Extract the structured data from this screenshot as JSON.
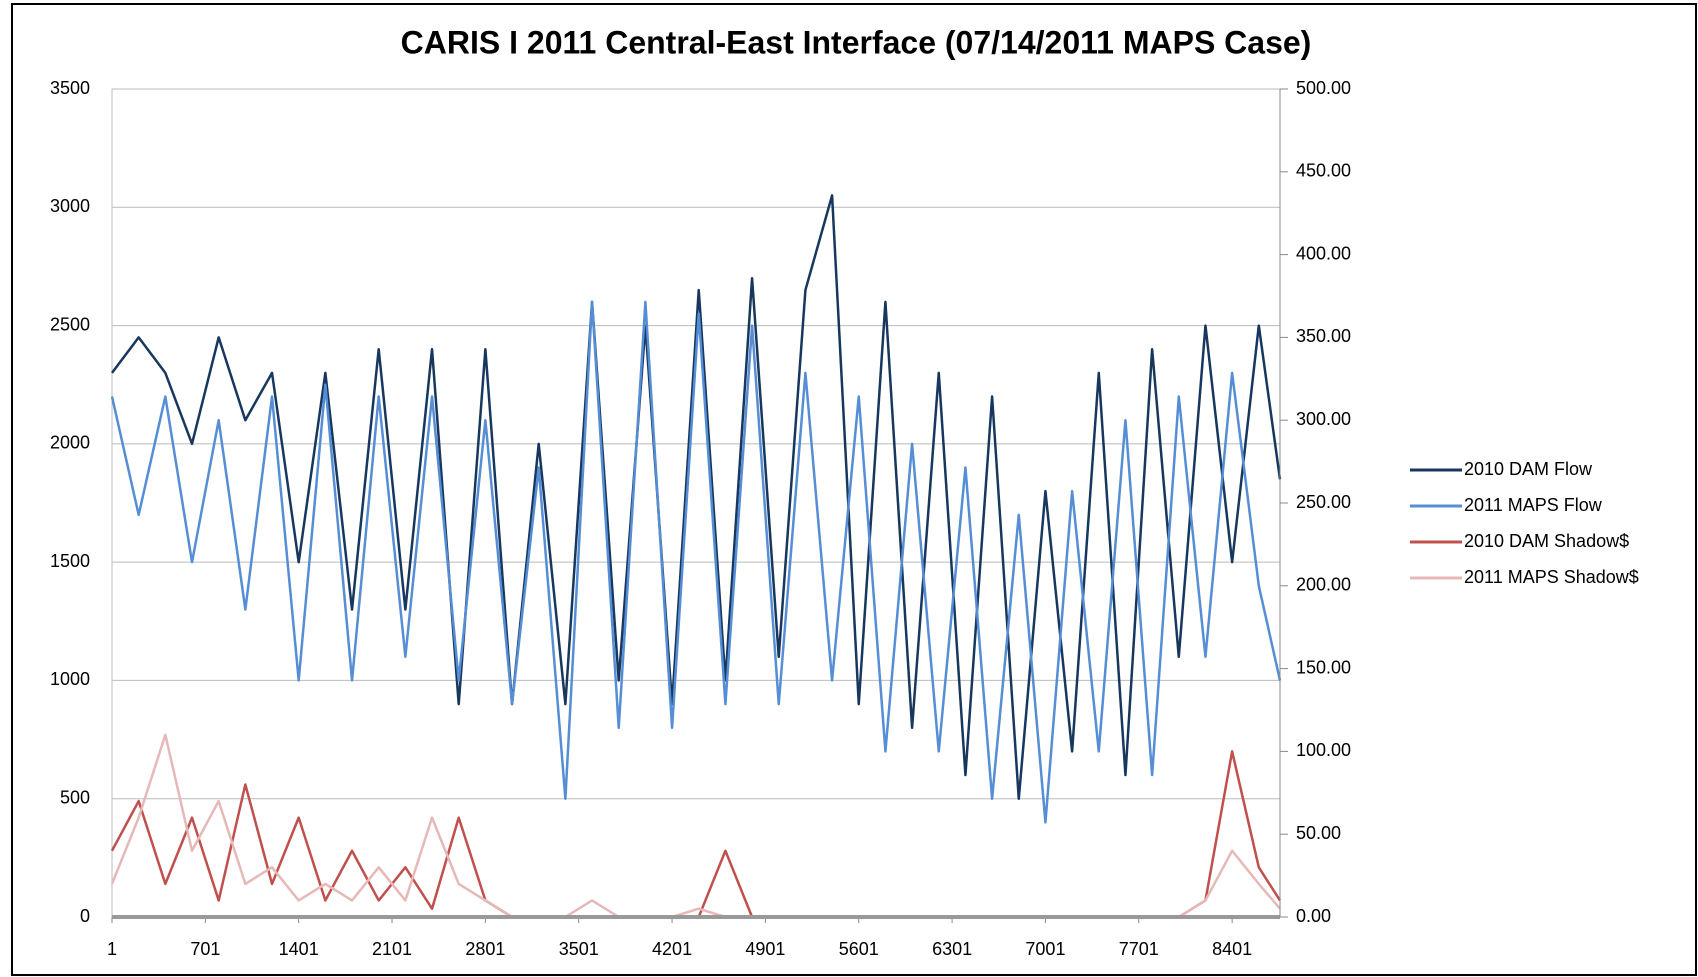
{
  "chart_data": {
    "type": "line",
    "title": "CARIS I 2011 Central-East Interface (07/14/2011 MAPS Case)",
    "x": [
      1,
      201,
      401,
      601,
      801,
      1001,
      1201,
      1401,
      1601,
      1801,
      2001,
      2201,
      2401,
      2601,
      2801,
      3001,
      3201,
      3401,
      3601,
      3801,
      4001,
      4201,
      4401,
      4601,
      4801,
      5001,
      5201,
      5401,
      5601,
      5801,
      6001,
      6201,
      6401,
      6601,
      6801,
      7001,
      7201,
      7401,
      7601,
      7801,
      8001,
      8201,
      8401,
      8601,
      8760
    ],
    "xlim": [
      1,
      8760
    ],
    "xticks": [
      1,
      701,
      1401,
      2101,
      2801,
      3501,
      4201,
      4901,
      5601,
      6301,
      7001,
      7701,
      8401
    ],
    "ylim": [
      0,
      3500
    ],
    "yticks": [
      0,
      500,
      1000,
      1500,
      2000,
      2500,
      3000,
      3500
    ],
    "y2lim": [
      0,
      500
    ],
    "y2ticks": [
      {
        "value": 0,
        "label": "0.00"
      },
      {
        "value": 50,
        "label": "50.00"
      },
      {
        "value": 100,
        "label": "100.00"
      },
      {
        "value": 150,
        "label": "150.00"
      },
      {
        "value": 200,
        "label": "200.00"
      },
      {
        "value": 250,
        "label": "250.00"
      },
      {
        "value": 300,
        "label": "300.00"
      },
      {
        "value": 350,
        "label": "350.00"
      },
      {
        "value": 400,
        "label": "400.00"
      },
      {
        "value": 450,
        "label": "450.00"
      },
      {
        "value": 500,
        "label": "500.00"
      }
    ],
    "grid": true,
    "legend": "right",
    "series": [
      {
        "name": "2010 DAM Flow",
        "color": "#17375e",
        "values": [
          2300,
          2450,
          2300,
          2000,
          2450,
          2100,
          2300,
          1500,
          2300,
          1300,
          2400,
          1300,
          2400,
          900,
          2400,
          900,
          2000,
          900,
          2600,
          1000,
          2500,
          900,
          2650,
          1000,
          2700,
          1100,
          2650,
          3050,
          900,
          2600,
          800,
          2300,
          600,
          2200,
          500,
          1800,
          700,
          2300,
          600,
          2400,
          1100,
          2500,
          1500,
          2500,
          1850
        ]
      },
      {
        "name": "2011 MAPS Flow",
        "color": "#558ed5",
        "values": [
          2200,
          1700,
          2200,
          1500,
          2100,
          1300,
          2200,
          1000,
          2250,
          1000,
          2200,
          1100,
          2200,
          1000,
          2100,
          900,
          1900,
          500,
          2600,
          800,
          2600,
          800,
          2550,
          900,
          2500,
          900,
          2300,
          1000,
          2200,
          700,
          2000,
          700,
          1900,
          500,
          1700,
          400,
          1800,
          700,
          2100,
          600,
          2200,
          1100,
          2300,
          1400,
          1000
        ]
      },
      {
        "name": "2010 DAM Shadow$",
        "color": "#c0504d",
        "axis": "y2",
        "values": [
          40,
          70,
          20,
          60,
          10,
          80,
          20,
          60,
          10,
          40,
          10,
          30,
          5,
          60,
          10,
          0,
          0,
          0,
          0,
          0,
          0,
          0,
          0,
          40,
          0,
          0,
          0,
          0,
          0,
          0,
          0,
          0,
          0,
          0,
          0,
          0,
          0,
          0,
          0,
          0,
          0,
          10,
          100,
          30,
          10
        ]
      },
      {
        "name": "2011 MAPS Shadow$",
        "color": "#e6b9b8",
        "axis": "y2",
        "values": [
          20,
          60,
          110,
          40,
          70,
          20,
          30,
          10,
          20,
          10,
          30,
          10,
          60,
          20,
          10,
          0,
          0,
          0,
          10,
          0,
          0,
          0,
          5,
          0,
          0,
          0,
          0,
          0,
          0,
          0,
          0,
          0,
          0,
          0,
          0,
          0,
          0,
          0,
          0,
          0,
          0,
          10,
          40,
          20,
          5
        ]
      }
    ]
  }
}
